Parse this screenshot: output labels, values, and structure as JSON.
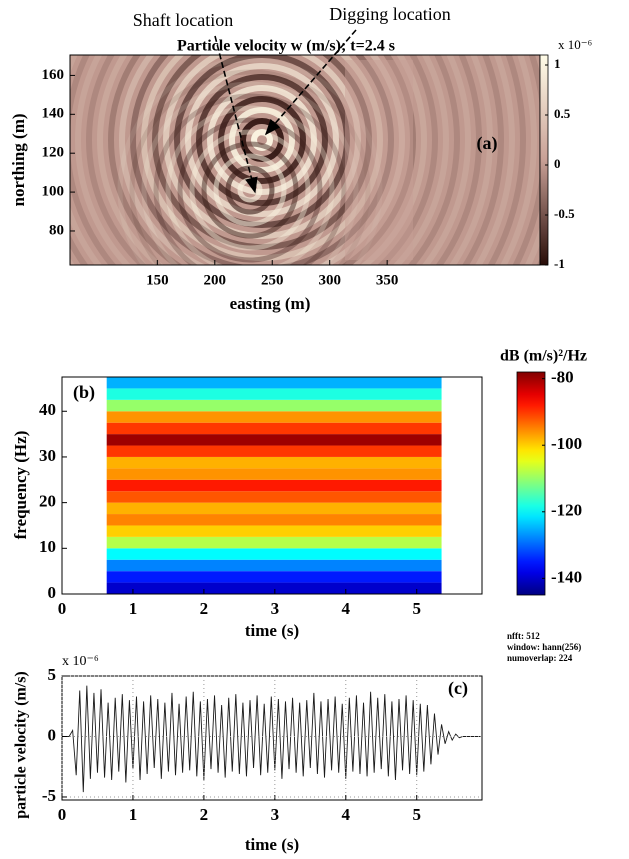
{
  "chart_data": [
    {
      "type": "heatmap",
      "title": "Particle velocity  w (m/s);  t=2.4 s",
      "panel_label": "(a)",
      "annotations": [
        "Shaft location",
        "Digging location"
      ],
      "xlabel": "easting (m)",
      "ylabel": "northing (m)",
      "xlim": [
        74,
        483
      ],
      "xticks": [
        150,
        200,
        250,
        300,
        350
      ],
      "ylim": [
        62.5,
        170.5
      ],
      "yticks": [
        80,
        100,
        120,
        140,
        160
      ],
      "colorbar": {
        "colormap": "pink",
        "clim": [
          -1,
          1.1
        ],
        "ticks": [
          -1,
          -0.5,
          0,
          0.5,
          1
        ],
        "multiplier": "x 10⁻⁶"
      }
    },
    {
      "type": "spectrogram",
      "panel_label": "(b)",
      "xlabel": "time (s)",
      "ylabel": "frequency (Hz)",
      "xlim": [
        0,
        5.92
      ],
      "xticks": [
        0,
        1,
        2,
        3,
        4,
        5
      ],
      "ylim": [
        0,
        47.5
      ],
      "yticks": [
        0,
        10,
        20,
        30,
        40
      ],
      "time_range": [
        0.63,
        5.35
      ],
      "frequency_edges": [
        0,
        2.5,
        5,
        7.5,
        10,
        12.5,
        15,
        17.5,
        20,
        22.5,
        25,
        27.5,
        30,
        32.5,
        35,
        37.5,
        40,
        42.5,
        45,
        47.5
      ],
      "levels": [
        -140,
        -135,
        -128,
        -120,
        -108,
        -100,
        -95,
        -98,
        -92,
        -88,
        -96,
        -98,
        -90,
        -80,
        -90,
        -96,
        -110,
        -118,
        -125
      ],
      "colorbar": {
        "colormap": "jet",
        "clim": [
          -145,
          -78
        ],
        "ticks": [
          -140,
          -120,
          -100,
          -80
        ],
        "label": "dB (m/s)²/Hz"
      },
      "notes": [
        "nfft: 512",
        "window: hann(256)",
        "numoverlap: 224"
      ]
    },
    {
      "type": "line",
      "panel_label": "(c)",
      "xlabel": "time (s)",
      "ylabel": "particle velocity (m/s)",
      "y_multiplier": "x 10⁻⁶",
      "xlim": [
        0,
        5.92
      ],
      "xticks": [
        0,
        1,
        2,
        3,
        4,
        5
      ],
      "ylim": [
        -5.25,
        5
      ],
      "yticks": [
        -5,
        0,
        5
      ],
      "grid": true,
      "x": [
        0,
        0.05,
        0.1,
        0.15,
        0.2,
        0.25,
        0.3,
        0.35,
        0.4,
        0.45,
        0.5,
        0.55,
        0.6,
        0.65,
        0.7,
        0.75,
        0.8,
        0.85,
        0.9,
        0.95,
        1,
        1.05,
        1.1,
        1.15,
        1.2,
        1.25,
        1.3,
        1.35,
        1.4,
        1.45,
        1.5,
        1.55,
        1.6,
        1.65,
        1.7,
        1.75,
        1.8,
        1.85,
        1.9,
        1.95,
        2,
        2.05,
        2.1,
        2.15,
        2.2,
        2.25,
        2.3,
        2.35,
        2.4,
        2.45,
        2.5,
        2.55,
        2.6,
        2.65,
        2.7,
        2.75,
        2.8,
        2.85,
        2.9,
        2.95,
        3,
        3.05,
        3.1,
        3.15,
        3.2,
        3.25,
        3.3,
        3.35,
        3.4,
        3.45,
        3.5,
        3.55,
        3.6,
        3.65,
        3.7,
        3.75,
        3.8,
        3.85,
        3.9,
        3.95,
        4,
        4.05,
        4.1,
        4.15,
        4.2,
        4.25,
        4.3,
        4.35,
        4.4,
        4.45,
        4.5,
        4.55,
        4.6,
        4.65,
        4.7,
        4.75,
        4.8,
        4.85,
        4.9,
        4.95,
        5,
        5.05,
        5.1,
        5.15,
        5.2,
        5.25,
        5.3,
        5.35,
        5.4,
        5.45,
        5.5,
        5.55,
        5.6,
        5.65,
        5.7,
        5.75,
        5.8,
        5.85,
        5.9
      ],
      "series": [
        {
          "color": "#1a1a1a",
          "values": [
            0,
            0,
            0,
            0.5,
            -3.2,
            3.8,
            -4.6,
            4.2,
            -3.5,
            3.6,
            -3.0,
            3.9,
            -3.4,
            2.8,
            -3.6,
            3.2,
            -2.9,
            3.5,
            -3.8,
            3.0,
            -2.7,
            3.3,
            -3.6,
            2.9,
            -3.1,
            3.4,
            -2.6,
            3.1,
            -3.5,
            2.8,
            -2.9,
            3.6,
            -3.2,
            2.7,
            -3.0,
            3.3,
            -2.8,
            3.7,
            -3.3,
            2.9,
            -3.6,
            3.1,
            -2.7,
            3.4,
            -3.0,
            2.6,
            -3.4,
            3.2,
            -2.9,
            3.5,
            -3.1,
            2.8,
            -3.3,
            3.0,
            -2.6,
            3.4,
            -3.2,
            2.7,
            -3.0,
            3.3,
            -2.8,
            3.1,
            -3.5,
            2.9,
            -2.7,
            3.2,
            -3.0,
            2.8,
            -3.3,
            3.0,
            -2.6,
            3.6,
            -3.1,
            2.9,
            -3.4,
            3.1,
            -2.8,
            3.3,
            -3.0,
            2.7,
            -3.5,
            3.2,
            -2.9,
            3.4,
            -3.1,
            2.8,
            -3.3,
            3.7,
            -3.0,
            3.2,
            -2.7,
            3.5,
            -3.3,
            2.9,
            -3.6,
            3.1,
            -2.8,
            3.4,
            -3.1,
            3.0,
            -3.2,
            2.7,
            -2.9,
            2.6,
            -2.3,
            1.9,
            -1.5,
            1.0,
            -0.6,
            0.4,
            -0.3,
            0.2,
            -0.1,
            0,
            0,
            0,
            0,
            0,
            0
          ]
        }
      ]
    }
  ]
}
